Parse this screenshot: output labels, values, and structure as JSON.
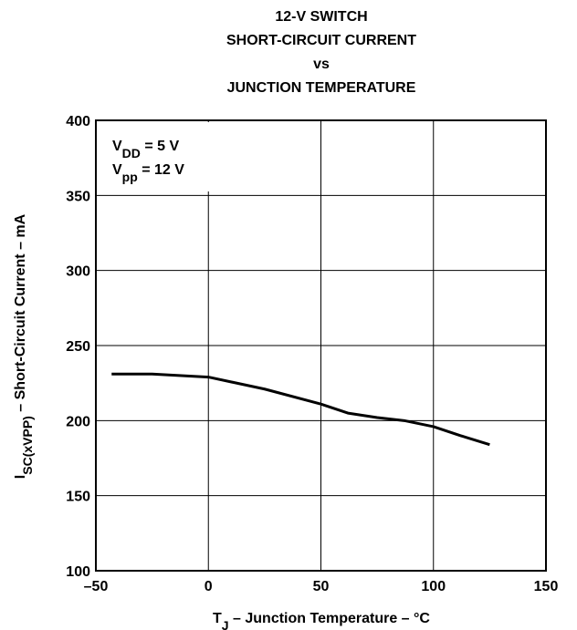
{
  "chart_data": {
    "type": "line",
    "title": [
      "12-V SWITCH",
      "SHORT-CIRCUIT CURRENT",
      "vs",
      "JUNCTION TEMPERATURE"
    ],
    "annotations": [
      {
        "main": "V",
        "sub": "DD",
        "rest": " = 5 V"
      },
      {
        "main": "V",
        "sub": "pp",
        "rest": " = 12 V"
      }
    ],
    "xlabel": {
      "main": "T",
      "sub": "J",
      "rest": " – Junction Temperature – °C"
    },
    "ylabel": {
      "main": "I",
      "sub": "SC(xVPP)",
      "rest": " – Short-Circuit Current – mA"
    },
    "x": [
      -43,
      -25,
      0,
      25,
      50,
      62,
      75,
      87,
      100,
      112,
      125
    ],
    "values": [
      231,
      231,
      229,
      221,
      211,
      205,
      202,
      200,
      196,
      190,
      184
    ],
    "color": "#000000",
    "xlim": [
      -50,
      150
    ],
    "xticks": [
      {
        "value": -50,
        "label": "–50"
      },
      0,
      50,
      100,
      150
    ],
    "ylim": [
      100,
      400
    ],
    "yticks": [
      100,
      150,
      200,
      250,
      300,
      350,
      400
    ],
    "grid": true
  }
}
